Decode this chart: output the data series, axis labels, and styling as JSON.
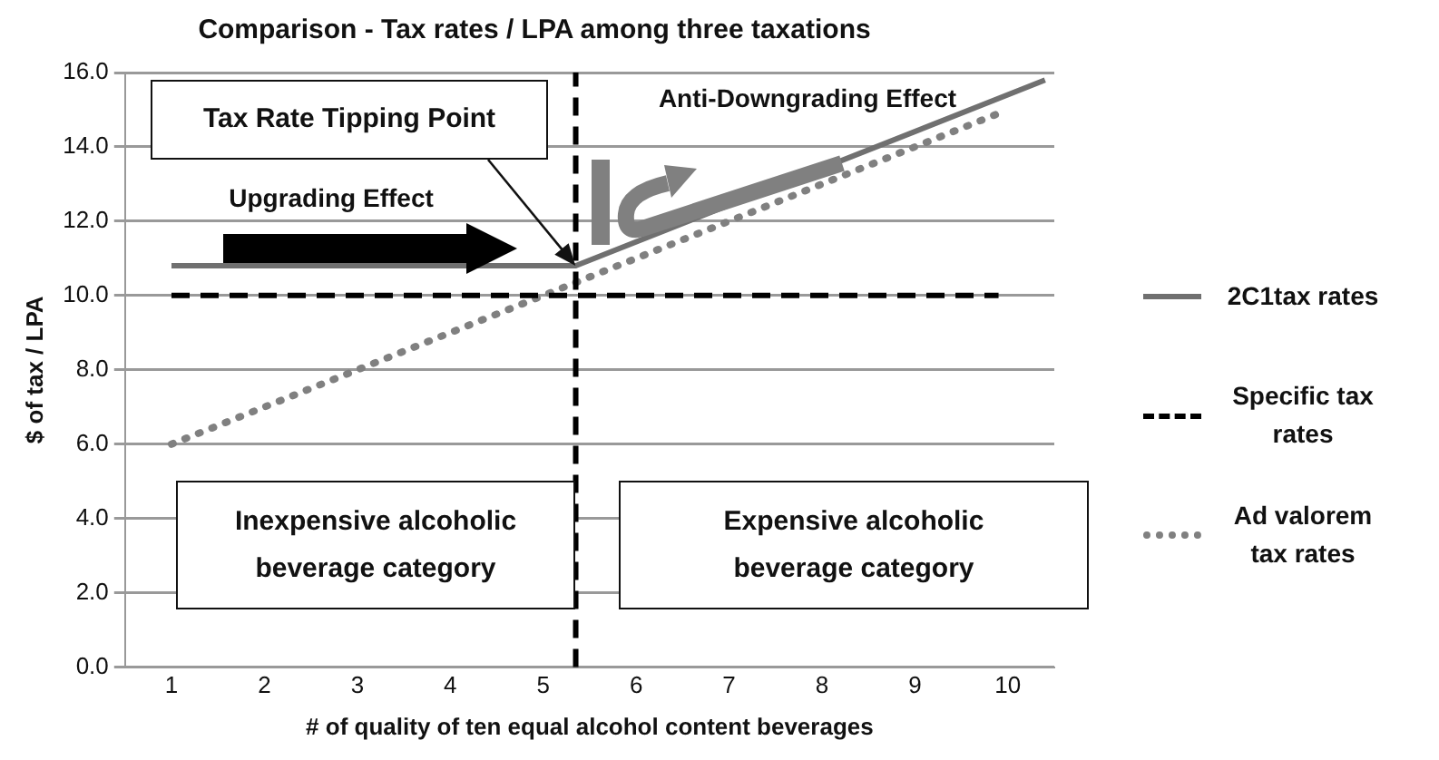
{
  "chart_data": {
    "type": "line",
    "title": "Comparison - Tax rates / LPA among three taxations",
    "xlabel": "# of quality of ten equal alcohol content beverages",
    "ylabel": "$ of tax / LPA",
    "series": [
      {
        "name": "2C1tax rates",
        "color": "#707070",
        "line_style": "solid",
        "x": [
          1,
          5.35,
          10.4
        ],
        "values": [
          10.8,
          10.8,
          15.8
        ]
      },
      {
        "name": "Specific tax rates",
        "color": "#000000",
        "line_style": "dashed",
        "x": [
          1,
          9.9
        ],
        "values": [
          10,
          10
        ]
      },
      {
        "name": "Ad valorem tax rates",
        "color": "#808080",
        "line_style": "dotted",
        "x": [
          1,
          9.9
        ],
        "values": [
          6,
          14.9
        ]
      }
    ],
    "xlim": [
      0.5,
      10.5
    ],
    "xticks": [
      1,
      2,
      3,
      4,
      5,
      6,
      7,
      8,
      9,
      10
    ],
    "ylim": [
      0,
      16
    ],
    "yticks": [
      {
        "value": 0,
        "label": "0.0"
      },
      {
        "value": 2,
        "label": "2.0"
      },
      {
        "value": 4,
        "label": "4.0"
      },
      {
        "value": 6,
        "label": "6.0"
      },
      {
        "value": 8,
        "label": "8.0"
      },
      {
        "value": 10,
        "label": "10.0"
      },
      {
        "value": 12,
        "label": "12.0"
      },
      {
        "value": 14,
        "label": "14.0"
      },
      {
        "value": 16,
        "label": "16.0"
      }
    ],
    "grid": "y",
    "legend": "right",
    "marker": "none",
    "ref_lines": [
      {
        "axis": "x",
        "value": 5.35,
        "color": "#000000",
        "line_style": "dashed"
      }
    ],
    "annotations": [
      {
        "text": "Tax Rate Tipping Point",
        "x": 5.35,
        "y": 10.8
      },
      "Upgrading Effect",
      "Anti-Downgrading Effect",
      "Inexpensive alcoholic beverage category",
      "Expensive alcoholic beverage category"
    ]
  }
}
